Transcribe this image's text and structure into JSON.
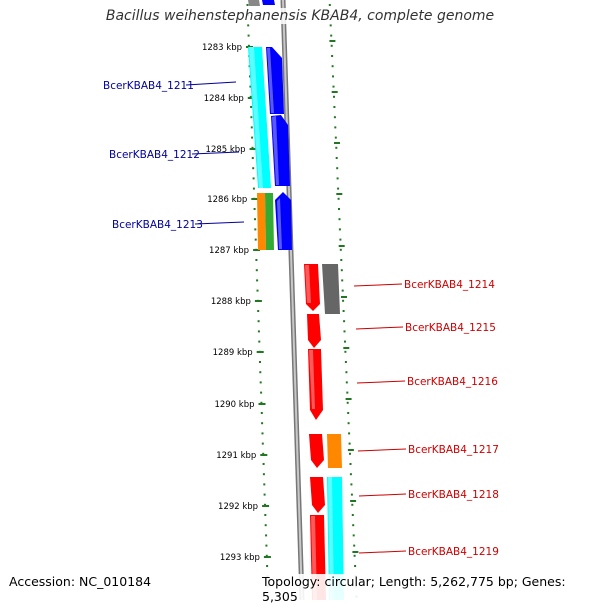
{
  "title": "Bacillus weihenstephanensis KBAB4, complete genome",
  "footer": {
    "accession": "Accession: NC_010184",
    "summary": "Topology: circular; Length: 5,262,775 bp; Genes: 5,305"
  },
  "kbp_labels": [
    "1283 kbp",
    "1284 kbp",
    "1285 kbp",
    "1286 kbp",
    "1287 kbp",
    "1288 kbp",
    "1289 kbp",
    "1290 kbp",
    "1291 kbp",
    "1292 kbp",
    "1293 kbp"
  ],
  "colors": {
    "cyan": "#00ffff",
    "blue": "#0000ff",
    "red": "#ff0000",
    "orange": "#ff8800",
    "green": "#33aa33",
    "gray": "#666666",
    "tick_green": "#227722",
    "left_label": "#000099",
    "right_label": "#cc0000"
  },
  "genes_left": [
    {
      "id": "BcerKBAB4_1211"
    },
    {
      "id": "BcerKBAB4_1212"
    },
    {
      "id": "BcerKBAB4_1213"
    }
  ],
  "genes_right": [
    {
      "id": "BcerKBAB4_1214"
    },
    {
      "id": "BcerKBAB4_1215"
    },
    {
      "id": "BcerKBAB4_1216"
    },
    {
      "id": "BcerKBAB4_1217"
    },
    {
      "id": "BcerKBAB4_1218"
    },
    {
      "id": "BcerKBAB4_1219"
    }
  ]
}
